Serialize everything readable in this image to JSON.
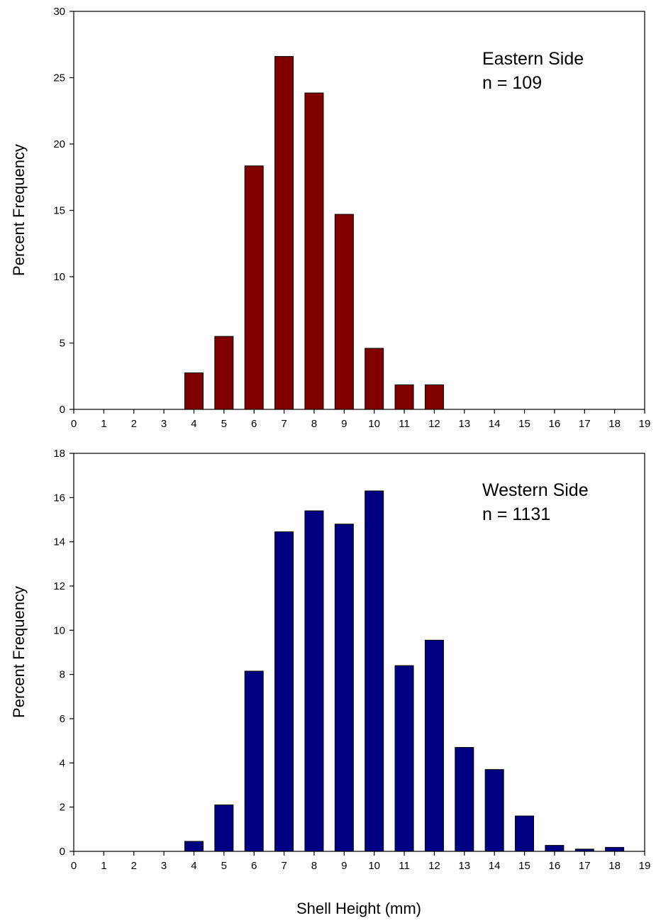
{
  "chart_data": [
    {
      "type": "bar",
      "annotation": [
        "Eastern Side",
        "n = 109"
      ],
      "ylabel": "Percent Frequency",
      "xlabel": "",
      "xlim": [
        0,
        19
      ],
      "ylim": [
        0,
        30
      ],
      "xticks": [
        0,
        1,
        2,
        3,
        4,
        5,
        6,
        7,
        8,
        9,
        10,
        11,
        12,
        13,
        14,
        15,
        16,
        17,
        18,
        19
      ],
      "yticks": [
        0,
        5,
        10,
        15,
        20,
        25,
        30
      ],
      "categories": [
        4,
        5,
        6,
        7,
        8,
        9,
        10,
        11,
        12
      ],
      "values": [
        2.75,
        5.5,
        18.35,
        26.6,
        23.85,
        14.7,
        4.6,
        1.85,
        1.85
      ],
      "bar_color": "#800000"
    },
    {
      "type": "bar",
      "annotation": [
        "Western Side",
        "n = 1131"
      ],
      "ylabel": "Percent Frequency",
      "xlabel": "Shell Height (mm)",
      "xlim": [
        0,
        19
      ],
      "ylim": [
        0,
        18
      ],
      "xticks": [
        0,
        1,
        2,
        3,
        4,
        5,
        6,
        7,
        8,
        9,
        10,
        11,
        12,
        13,
        14,
        15,
        16,
        17,
        18,
        19
      ],
      "yticks": [
        0,
        2,
        4,
        6,
        8,
        10,
        12,
        14,
        16,
        18
      ],
      "categories": [
        4,
        5,
        6,
        7,
        8,
        9,
        10,
        11,
        12,
        13,
        14,
        15,
        16,
        17,
        18
      ],
      "values": [
        0.45,
        2.1,
        8.15,
        14.45,
        15.4,
        14.8,
        16.3,
        8.4,
        9.55,
        4.7,
        3.7,
        1.6,
        0.27,
        0.1,
        0.18
      ],
      "bar_color": "#000080"
    }
  ]
}
